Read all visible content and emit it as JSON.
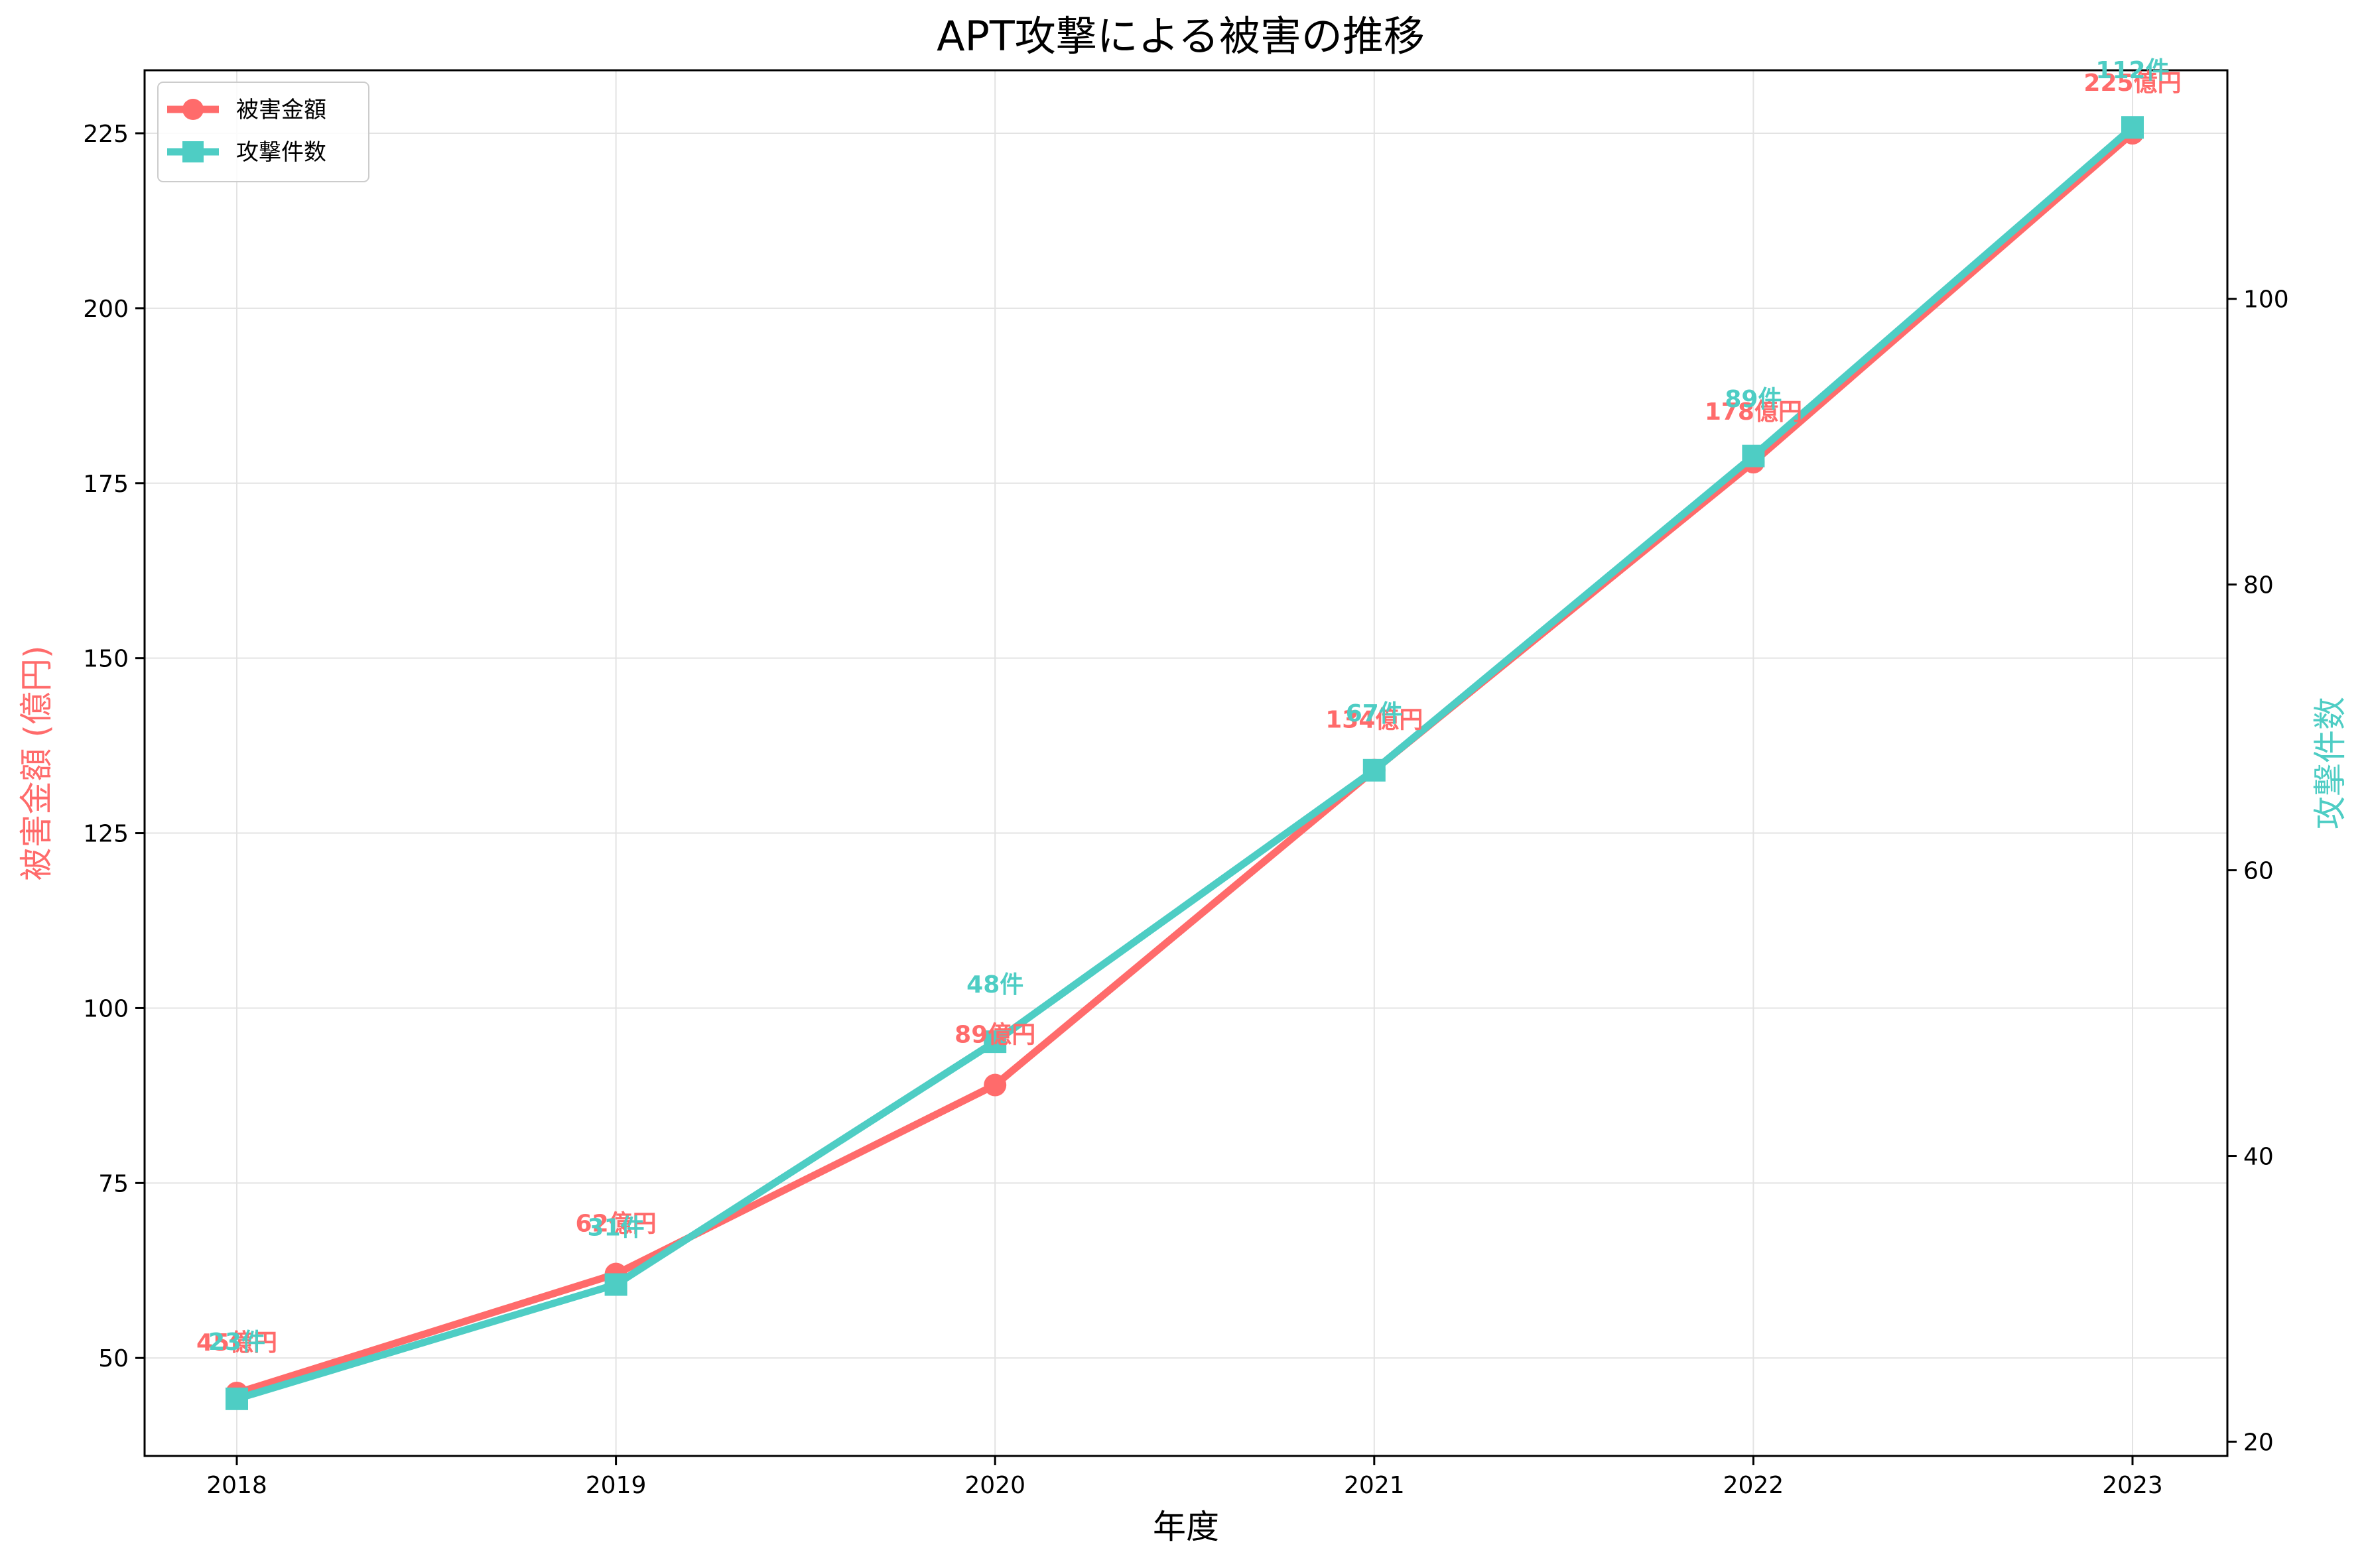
{
  "chart_data": {
    "type": "line",
    "title": "APT攻撃による被害の推移",
    "xlabel": "年度",
    "ylabel_left": "被害金額 (億円)",
    "ylabel_right": "攻撃件数",
    "categories": [
      "2018",
      "2019",
      "2020",
      "2021",
      "2022",
      "2023"
    ],
    "ylim_left": [
      36,
      234
    ],
    "ylim_right": [
      19,
      116
    ],
    "yticks_left": [
      50,
      75,
      100,
      125,
      150,
      175,
      200,
      225
    ],
    "yticks_right": [
      20,
      40,
      60,
      80,
      100
    ],
    "grid": true,
    "legend_position": "top-left",
    "series": [
      {
        "name": "被害金額",
        "axis": "left",
        "color": "#ff6b6b",
        "marker": "circle",
        "values": [
          45,
          62,
          89,
          134,
          178,
          225
        ],
        "labels": [
          "45億円",
          "62億円",
          "89億円",
          "134億円",
          "178億円",
          "225億円"
        ]
      },
      {
        "name": "攻撃件数",
        "axis": "right",
        "color": "#4ecdc4",
        "marker": "square",
        "values": [
          23,
          31,
          48,
          67,
          89,
          112
        ],
        "labels": [
          "23件",
          "31件",
          "48件",
          "67件",
          "89件",
          "112件"
        ]
      }
    ]
  }
}
